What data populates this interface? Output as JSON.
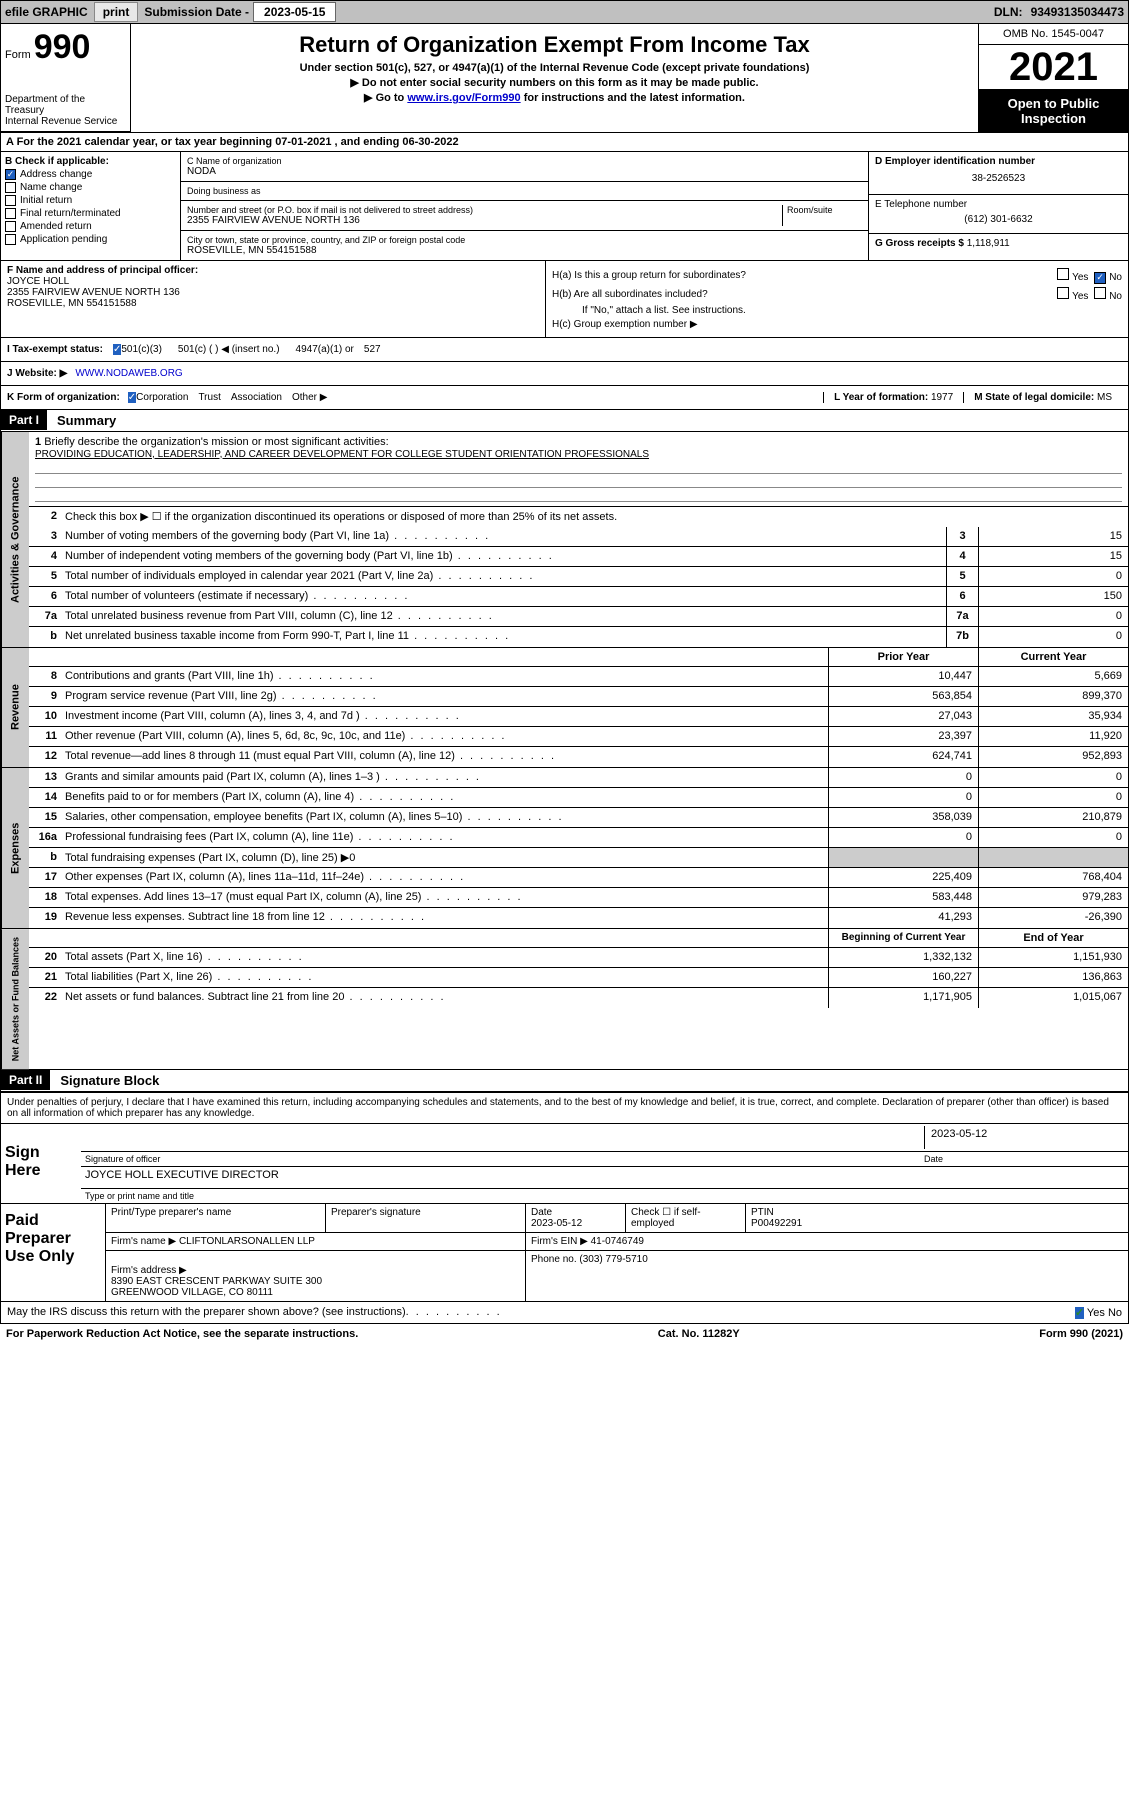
{
  "topbar": {
    "efile": "efile GRAPHIC",
    "print": "print",
    "sub_label": "Submission Date - ",
    "sub_date": "2023-05-15",
    "dln_label": "DLN: ",
    "dln": "93493135034473"
  },
  "header": {
    "form_word": "Form",
    "form_num": "990",
    "title": "Return of Organization Exempt From Income Tax",
    "sub1": "Under section 501(c), 527, or 4947(a)(1) of the Internal Revenue Code (except private foundations)",
    "sub2": "▶ Do not enter social security numbers on this form as it may be made public.",
    "sub3_pre": "▶ Go to ",
    "sub3_link": "www.irs.gov/Form990",
    "sub3_post": " for instructions and the latest information.",
    "omb": "OMB No. 1545-0047",
    "year": "2021",
    "public": "Open to Public Inspection",
    "dept": "Department of the Treasury\nInternal Revenue Service"
  },
  "a_line": "A For the 2021 calendar year, or tax year beginning 07-01-2021   , and ending 06-30-2022",
  "b": {
    "header": "B Check if applicable:",
    "items": [
      {
        "label": "Address change",
        "checked": true
      },
      {
        "label": "Name change",
        "checked": false
      },
      {
        "label": "Initial return",
        "checked": false
      },
      {
        "label": "Final return/terminated",
        "checked": false
      },
      {
        "label": "Amended return",
        "checked": false
      },
      {
        "label": "Application pending",
        "checked": false
      }
    ]
  },
  "c": {
    "name_label": "C Name of organization",
    "name": "NODA",
    "dba_label": "Doing business as",
    "dba": "",
    "addr_label": "Number and street (or P.O. box if mail is not delivered to street address)",
    "room_label": "Room/suite",
    "addr": "2355 FAIRVIEW AVENUE NORTH 136",
    "city_label": "City or town, state or province, country, and ZIP or foreign postal code",
    "city": "ROSEVILLE, MN  554151588"
  },
  "d": {
    "label": "D Employer identification number",
    "value": "38-2526523"
  },
  "e": {
    "label": "E Telephone number",
    "value": "(612) 301-6632"
  },
  "g": {
    "label": "G Gross receipts $",
    "value": "1,118,911"
  },
  "f": {
    "label": "F Name and address of principal officer:",
    "name": "JOYCE HOLL",
    "addr": "2355 FAIRVIEW AVENUE NORTH 136\nROSEVILLE, MN  554151588"
  },
  "h": {
    "a_label": "H(a)  Is this a group return for subordinates?",
    "a_yes": "Yes",
    "a_no": "No",
    "b_label": "H(b)  Are all subordinates included?",
    "b_note": "If \"No,\" attach a list. See instructions.",
    "c_label": "H(c)  Group exemption number ▶"
  },
  "i": {
    "label": "I   Tax-exempt status:",
    "opts": [
      "501(c)(3)",
      "501(c) (  ) ◀ (insert no.)",
      "4947(a)(1) or",
      "527"
    ]
  },
  "j": {
    "label": "J   Website: ▶",
    "value": "WWW.NODAWEB.ORG"
  },
  "k": {
    "label": "K Form of organization:",
    "opts": [
      "Corporation",
      "Trust",
      "Association",
      "Other ▶"
    ],
    "l_label": "L Year of formation:",
    "l_value": "1977",
    "m_label": "M State of legal domicile:",
    "m_value": "MS"
  },
  "part1": {
    "tag": "Part I",
    "name": "Summary",
    "vtab1": "Activities & Governance",
    "line1": "Briefly describe the organization's mission or most significant activities:",
    "mission": "PROVIDING EDUCATION, LEADERSHIP, AND CAREER DEVELOPMENT FOR COLLEGE STUDENT ORIENTATION PROFESSIONALS",
    "line2": "Check this box ▶ ☐  if the organization discontinued its operations or disposed of more than 25% of its net assets.",
    "lines_ag": [
      {
        "n": "3",
        "desc": "Number of voting members of the governing body (Part VI, line 1a)",
        "r": "3",
        "v": "15"
      },
      {
        "n": "4",
        "desc": "Number of independent voting members of the governing body (Part VI, line 1b)",
        "r": "4",
        "v": "15"
      },
      {
        "n": "5",
        "desc": "Total number of individuals employed in calendar year 2021 (Part V, line 2a)",
        "r": "5",
        "v": "0"
      },
      {
        "n": "6",
        "desc": "Total number of volunteers (estimate if necessary)",
        "r": "6",
        "v": "150"
      },
      {
        "n": "7a",
        "desc": "Total unrelated business revenue from Part VIII, column (C), line 12",
        "r": "7a",
        "v": "0"
      },
      {
        "n": "b",
        "desc": "Net unrelated business taxable income from Form 990-T, Part I, line 11",
        "r": "7b",
        "v": "0"
      }
    ],
    "col_prior": "Prior Year",
    "col_current": "Current Year",
    "vtab2": "Revenue",
    "lines_rev": [
      {
        "n": "8",
        "desc": "Contributions and grants (Part VIII, line 1h)",
        "p": "10,447",
        "c": "5,669"
      },
      {
        "n": "9",
        "desc": "Program service revenue (Part VIII, line 2g)",
        "p": "563,854",
        "c": "899,370"
      },
      {
        "n": "10",
        "desc": "Investment income (Part VIII, column (A), lines 3, 4, and 7d )",
        "p": "27,043",
        "c": "35,934"
      },
      {
        "n": "11",
        "desc": "Other revenue (Part VIII, column (A), lines 5, 6d, 8c, 9c, 10c, and 11e)",
        "p": "23,397",
        "c": "11,920"
      },
      {
        "n": "12",
        "desc": "Total revenue—add lines 8 through 11 (must equal Part VIII, column (A), line 12)",
        "p": "624,741",
        "c": "952,893"
      }
    ],
    "vtab3": "Expenses",
    "lines_exp": [
      {
        "n": "13",
        "desc": "Grants and similar amounts paid (Part IX, column (A), lines 1–3 )",
        "p": "0",
        "c": "0"
      },
      {
        "n": "14",
        "desc": "Benefits paid to or for members (Part IX, column (A), line 4)",
        "p": "0",
        "c": "0"
      },
      {
        "n": "15",
        "desc": "Salaries, other compensation, employee benefits (Part IX, column (A), lines 5–10)",
        "p": "358,039",
        "c": "210,879"
      },
      {
        "n": "16a",
        "desc": "Professional fundraising fees (Part IX, column (A), line 11e)",
        "p": "0",
        "c": "0"
      },
      {
        "n": "b",
        "desc": "Total fundraising expenses (Part IX, column (D), line 25) ▶0",
        "p": "",
        "c": "",
        "gray": true
      },
      {
        "n": "17",
        "desc": "Other expenses (Part IX, column (A), lines 11a–11d, 11f–24e)",
        "p": "225,409",
        "c": "768,404"
      },
      {
        "n": "18",
        "desc": "Total expenses. Add lines 13–17 (must equal Part IX, column (A), line 25)",
        "p": "583,448",
        "c": "979,283"
      },
      {
        "n": "19",
        "desc": "Revenue less expenses. Subtract line 18 from line 12",
        "p": "41,293",
        "c": "-26,390"
      }
    ],
    "col_begin": "Beginning of Current Year",
    "col_end": "End of Year",
    "vtab4": "Net Assets or Fund Balances",
    "lines_na": [
      {
        "n": "20",
        "desc": "Total assets (Part X, line 16)",
        "p": "1,332,132",
        "c": "1,151,930"
      },
      {
        "n": "21",
        "desc": "Total liabilities (Part X, line 26)",
        "p": "160,227",
        "c": "136,863"
      },
      {
        "n": "22",
        "desc": "Net assets or fund balances. Subtract line 21 from line 20",
        "p": "1,171,905",
        "c": "1,015,067"
      }
    ]
  },
  "part2": {
    "tag": "Part II",
    "name": "Signature Block",
    "decl": "Under penalties of perjury, I declare that I have examined this return, including accompanying schedules and statements, and to the best of my knowledge and belief, it is true, correct, and complete. Declaration of preparer (other than officer) is based on all information of which preparer has any knowledge.",
    "sign_here": "Sign Here",
    "sig_officer": "Signature of officer",
    "sig_date_label": "Date",
    "sig_date": "2023-05-12",
    "officer_name": "JOYCE HOLL  EXECUTIVE DIRECTOR",
    "type_label": "Type or print name and title",
    "paid": "Paid Preparer Use Only",
    "p_name_label": "Print/Type preparer's name",
    "p_sig_label": "Preparer's signature",
    "p_date_label": "Date",
    "p_date": "2023-05-12",
    "p_check_label": "Check ☐ if self-employed",
    "ptin_label": "PTIN",
    "ptin": "P00492291",
    "firm_name_label": "Firm's name    ▶",
    "firm_name": "CLIFTONLARSONALLEN LLP",
    "firm_ein_label": "Firm's EIN ▶",
    "firm_ein": "41-0746749",
    "firm_addr_label": "Firm's address ▶",
    "firm_addr": "8390 EAST CRESCENT PARKWAY SUITE 300\nGREENWOOD VILLAGE, CO  80111",
    "phone_label": "Phone no.",
    "phone": "(303) 779-5710",
    "discuss": "May the IRS discuss this return with the preparer shown above? (see instructions)",
    "yes": "Yes",
    "no": "No"
  },
  "footer": {
    "left": "For Paperwork Reduction Act Notice, see the separate instructions.",
    "mid": "Cat. No. 11282Y",
    "right": "Form 990 (2021)"
  }
}
